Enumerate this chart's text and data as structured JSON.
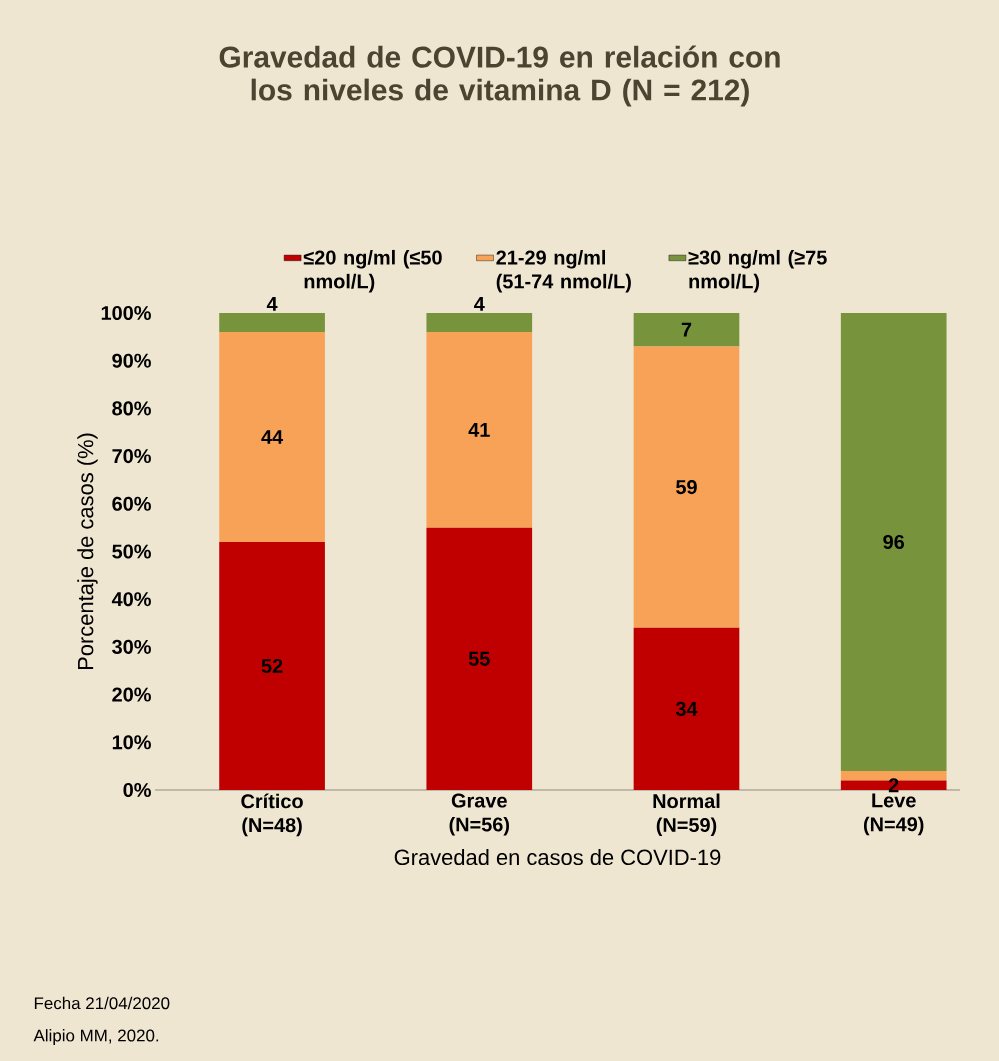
{
  "chart_data": {
    "type": "bar",
    "stacked": true,
    "title": "Gravedad de COVID-19 en relación con los niveles de vitamina D (N = 212)",
    "xlabel": "Gravedad en casos de COVID-19",
    "ylabel": "Porcentaje de casos (%)",
    "categories": [
      "Crítico (N=48)",
      "Grave (N=56)",
      "Normal (N=59)",
      "Leve (N=49)"
    ],
    "series": [
      {
        "name": "≤20 ng/ml (≤50 nmol/L)",
        "color": "#c00000",
        "values": [
          52,
          55,
          34,
          2
        ],
        "value_labels": [
          "52",
          "55",
          "34",
          "2"
        ]
      },
      {
        "name": "21-29 ng/ml (51-74 nmol/L)",
        "color": "#f7a257",
        "values": [
          44,
          41,
          59,
          2
        ],
        "value_labels": [
          "44",
          "41",
          "59",
          null
        ]
      },
      {
        "name": "≥30 ng/ml (≥75 nmol/L)",
        "color": "#77933c",
        "values": [
          4,
          4,
          7,
          96
        ],
        "value_labels": [
          "4",
          "4",
          "7",
          "96"
        ]
      }
    ],
    "ylim": [
      0,
      100
    ],
    "yticks": [
      {
        "value": 0,
        "label": "0%"
      },
      {
        "value": 10,
        "label": "10%"
      },
      {
        "value": 20,
        "label": "20%"
      },
      {
        "value": 30,
        "label": "30%"
      },
      {
        "value": 40,
        "label": "40%"
      },
      {
        "value": 50,
        "label": "50%"
      },
      {
        "value": 60,
        "label": "60%"
      },
      {
        "value": 70,
        "label": "70%"
      },
      {
        "value": 80,
        "label": "80%"
      },
      {
        "value": 90,
        "label": "90%"
      },
      {
        "value": 100,
        "label": "100%"
      }
    ],
    "legend": "top",
    "annotations": [
      "Fecha 21/04/2020",
      "Alipio MM, 2020."
    ]
  }
}
